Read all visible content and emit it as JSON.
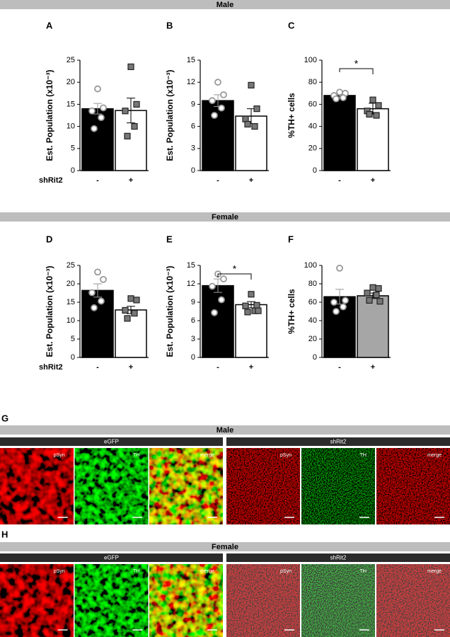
{
  "banners": {
    "male": "Male",
    "female": "Female"
  },
  "chart_data": [
    {
      "type": "bar",
      "panel": "A",
      "ylabel": "Est. Population (x10⁻³)",
      "group_label": "shRit2",
      "categories": [
        "-",
        "+"
      ],
      "colors": [
        "#000000",
        "#ffffff"
      ],
      "values": [
        14.0,
        13.6
      ],
      "errors": [
        1.2,
        2.8
      ],
      "points": [
        [
          18.5,
          14.2,
          13.5,
          12.0,
          9.5
        ],
        [
          23.5,
          15.0,
          13.5,
          10.0,
          7.8
        ]
      ],
      "ylim": [
        0,
        25
      ],
      "yticks": [
        0,
        5,
        10,
        15,
        20,
        25
      ]
    },
    {
      "type": "bar",
      "panel": "B",
      "ylabel": "Est. Population (x10⁻³)",
      "categories": [
        "-",
        "+"
      ],
      "colors": [
        "#000000",
        "#ffffff"
      ],
      "values": [
        9.5,
        7.4
      ],
      "errors": [
        0.8,
        1.0
      ],
      "points": [
        [
          12.0,
          10.3,
          9.5,
          8.5,
          7.5
        ],
        [
          11.6,
          8.4,
          7.0,
          6.0,
          6.3
        ]
      ],
      "ylim": [
        0,
        15
      ],
      "yticks": [
        0,
        3,
        6,
        9,
        12,
        15
      ]
    },
    {
      "type": "bar",
      "panel": "C",
      "ylabel": "%TH+ cells",
      "categories": [
        "-",
        "+"
      ],
      "colors": [
        "#000000",
        "#ffffff"
      ],
      "values": [
        68,
        56
      ],
      "errors": [
        2,
        5
      ],
      "points": [
        [
          71,
          70,
          68,
          66,
          65
        ],
        [
          64,
          59,
          54,
          50,
          51
        ]
      ],
      "ylim": [
        0,
        100
      ],
      "yticks": [
        0,
        20,
        40,
        60,
        80,
        100
      ],
      "significance": "*"
    },
    {
      "type": "bar",
      "panel": "D",
      "ylabel": "Est. Population (x10⁻³)",
      "group_label": "shRit2",
      "categories": [
        "-",
        "+"
      ],
      "colors": [
        "#000000",
        "#ffffff"
      ],
      "values": [
        18.2,
        12.9
      ],
      "errors": [
        1.8,
        1.0
      ],
      "points": [
        [
          23.2,
          21.2,
          17.6,
          15.3,
          13.5
        ],
        [
          16.0,
          15.6,
          12.8,
          12.0,
          10.6
        ]
      ],
      "ylim": [
        0,
        25
      ],
      "yticks": [
        0,
        5,
        10,
        15,
        20,
        25
      ]
    },
    {
      "type": "bar",
      "panel": "E",
      "ylabel": "Est. Population (x10⁻³)",
      "categories": [
        "-",
        "+"
      ],
      "colors": [
        "#000000",
        "#ffffff"
      ],
      "values": [
        11.7,
        8.6
      ],
      "errors": [
        1.1,
        0.5
      ],
      "points": [
        [
          13.6,
          12.8,
          11.6,
          9.4,
          7.3
        ],
        [
          10.3,
          8.5,
          8.4,
          7.6,
          7.4,
          7.6
        ]
      ],
      "ylim": [
        0,
        15
      ],
      "yticks": [
        0,
        3,
        6,
        9,
        12,
        15
      ],
      "significance": "*"
    },
    {
      "type": "bar",
      "panel": "F",
      "ylabel": "%TH+ cells",
      "categories": [
        "-",
        "+"
      ],
      "colors": [
        "#000000",
        "#a6a6a6"
      ],
      "values": [
        66,
        67
      ],
      "errors": [
        8,
        3
      ],
      "points": [
        [
          97,
          62,
          60,
          55,
          50
        ],
        [
          76,
          75,
          70,
          68,
          62,
          61
        ]
      ],
      "ylim": [
        0,
        100
      ],
      "yticks": [
        0,
        20,
        40,
        60,
        80,
        100
      ]
    }
  ],
  "micrographs": [
    {
      "panel": "G",
      "title": "Male",
      "groups": [
        {
          "name": "eGFP",
          "channels": [
            "pSyn",
            "TH",
            "merge"
          ]
        },
        {
          "name": "shRit2",
          "channels": [
            "pSyn",
            "TH",
            "merge"
          ]
        }
      ]
    },
    {
      "panel": "H",
      "title": "Female",
      "groups": [
        {
          "name": "eGFP",
          "channels": [
            "pSyn",
            "TH",
            "merge"
          ]
        },
        {
          "name": "shRit2",
          "channels": [
            "pSyn",
            "TH",
            "merge"
          ]
        }
      ]
    }
  ]
}
